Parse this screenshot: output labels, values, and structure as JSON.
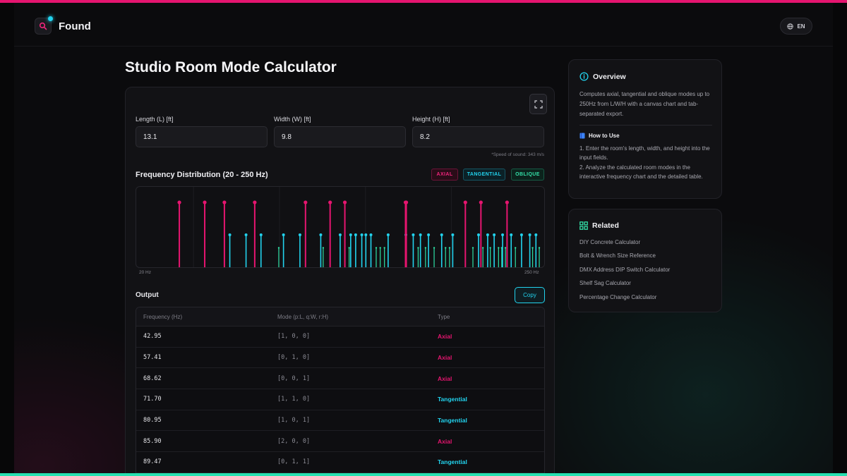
{
  "header": {
    "brand": "Found",
    "lang": "EN"
  },
  "page": {
    "title": "Studio Room Mode Calculator"
  },
  "inputs": {
    "length": {
      "label": "Length (L) [ft]",
      "value": "13.1"
    },
    "width": {
      "label": "Width (W) [ft]",
      "value": "9.8"
    },
    "height": {
      "label": "Height (H) [ft]",
      "value": "8.2"
    },
    "speed_note": "*Speed of sound: 343 m/s"
  },
  "chart_section": {
    "title": "Frequency Distribution (20 - 250 Hz)",
    "legend": {
      "axial": "AXIAL",
      "tangential": "TANGENTIAL",
      "oblique": "OBLIQUE"
    },
    "x_min_label": "20 Hz",
    "x_max_label": "250 Hz"
  },
  "chart_data": {
    "type": "bar",
    "xlim": [
      20,
      250
    ],
    "colors": {
      "axial": "#e5156f",
      "tangential": "#22d3ee",
      "oblique": "#2ee0a4"
    },
    "series": [
      {
        "name": "AXIAL",
        "x": [
          42.95,
          57.41,
          68.62,
          85.9,
          114.82,
          128.85,
          137.24,
          171.8,
          172.23,
          205.89,
          214.75,
          229.64
        ],
        "values": [
          1,
          1,
          1,
          1,
          1,
          1,
          1,
          1,
          1,
          1,
          1,
          1
        ]
      },
      {
        "name": "TANGENTIAL",
        "x": [
          71.7,
          80.95,
          89.47,
          102.28,
          111.66,
          123.52,
          134.57,
          140.56,
          143.4,
          146.9,
          149.2,
          152.1,
          161.9,
          172.0,
          176.2,
          180.3,
          184.9,
          192.4,
          198.7,
          213.4,
          218.6,
          222.3,
          227.1,
          232.0,
          237.9,
          242.6,
          246.1
        ],
        "values": [
          0.5,
          0.5,
          0.5,
          0.5,
          0.5,
          0.5,
          0.5,
          0.5,
          0.5,
          0.5,
          0.5,
          0.5,
          0.5,
          0.5,
          0.5,
          0.5,
          0.5,
          0.5,
          0.5,
          0.5,
          0.5,
          0.5,
          0.5,
          0.5,
          0.5,
          0.5,
          0.5
        ]
      },
      {
        "name": "OBLIQUE",
        "x": [
          99.6,
          124.9,
          139.7,
          155.1,
          157.4,
          159.8,
          179.0,
          183.2,
          188.1,
          194.6,
          196.9,
          210.2,
          215.9,
          220.1,
          224.8,
          226.6,
          228.7,
          234.4,
          244.2,
          248.0
        ],
        "values": [
          0.3,
          0.3,
          0.3,
          0.3,
          0.3,
          0.3,
          0.3,
          0.3,
          0.3,
          0.3,
          0.3,
          0.3,
          0.3,
          0.3,
          0.3,
          0.3,
          0.3,
          0.3,
          0.3,
          0.3
        ]
      }
    ]
  },
  "output": {
    "label": "Output",
    "copy": "Copy",
    "columns": [
      "Frequency (Hz)",
      "Mode (p:L, q:W, r:H)",
      "Type"
    ],
    "rows": [
      {
        "freq": "42.95",
        "mode": "[1, 0, 0]",
        "type": "Axial"
      },
      {
        "freq": "57.41",
        "mode": "[0, 1, 0]",
        "type": "Axial"
      },
      {
        "freq": "68.62",
        "mode": "[0, 0, 1]",
        "type": "Axial"
      },
      {
        "freq": "71.70",
        "mode": "[1, 1, 0]",
        "type": "Tangential"
      },
      {
        "freq": "80.95",
        "mode": "[1, 0, 1]",
        "type": "Tangential"
      },
      {
        "freq": "85.90",
        "mode": "[2, 0, 0]",
        "type": "Axial"
      },
      {
        "freq": "89.47",
        "mode": "[0, 1, 1]",
        "type": "Tangential"
      }
    ]
  },
  "overview": {
    "title": "Overview",
    "desc": "Computes axial, tangential and oblique modes up to 250Hz from L/W/H with a canvas chart and tab-separated export.",
    "howto_title": "How to Use",
    "steps": [
      "1. Enter the room's length, width, and height into the input fields.",
      "2. Analyze the calculated room modes in the interactive frequency chart and the detailed table."
    ]
  },
  "related": {
    "title": "Related",
    "items": [
      "DIY Concrete Calculator",
      "Bolt & Wrench Size Reference",
      "DMX Address DIP Switch Calculator",
      "Shelf Sag Calculator",
      "Percentage Change Calculator"
    ]
  },
  "colors": {
    "accent_pink": "#e5156f",
    "accent_cyan": "#22d3ee",
    "accent_green": "#2ee0a4"
  }
}
